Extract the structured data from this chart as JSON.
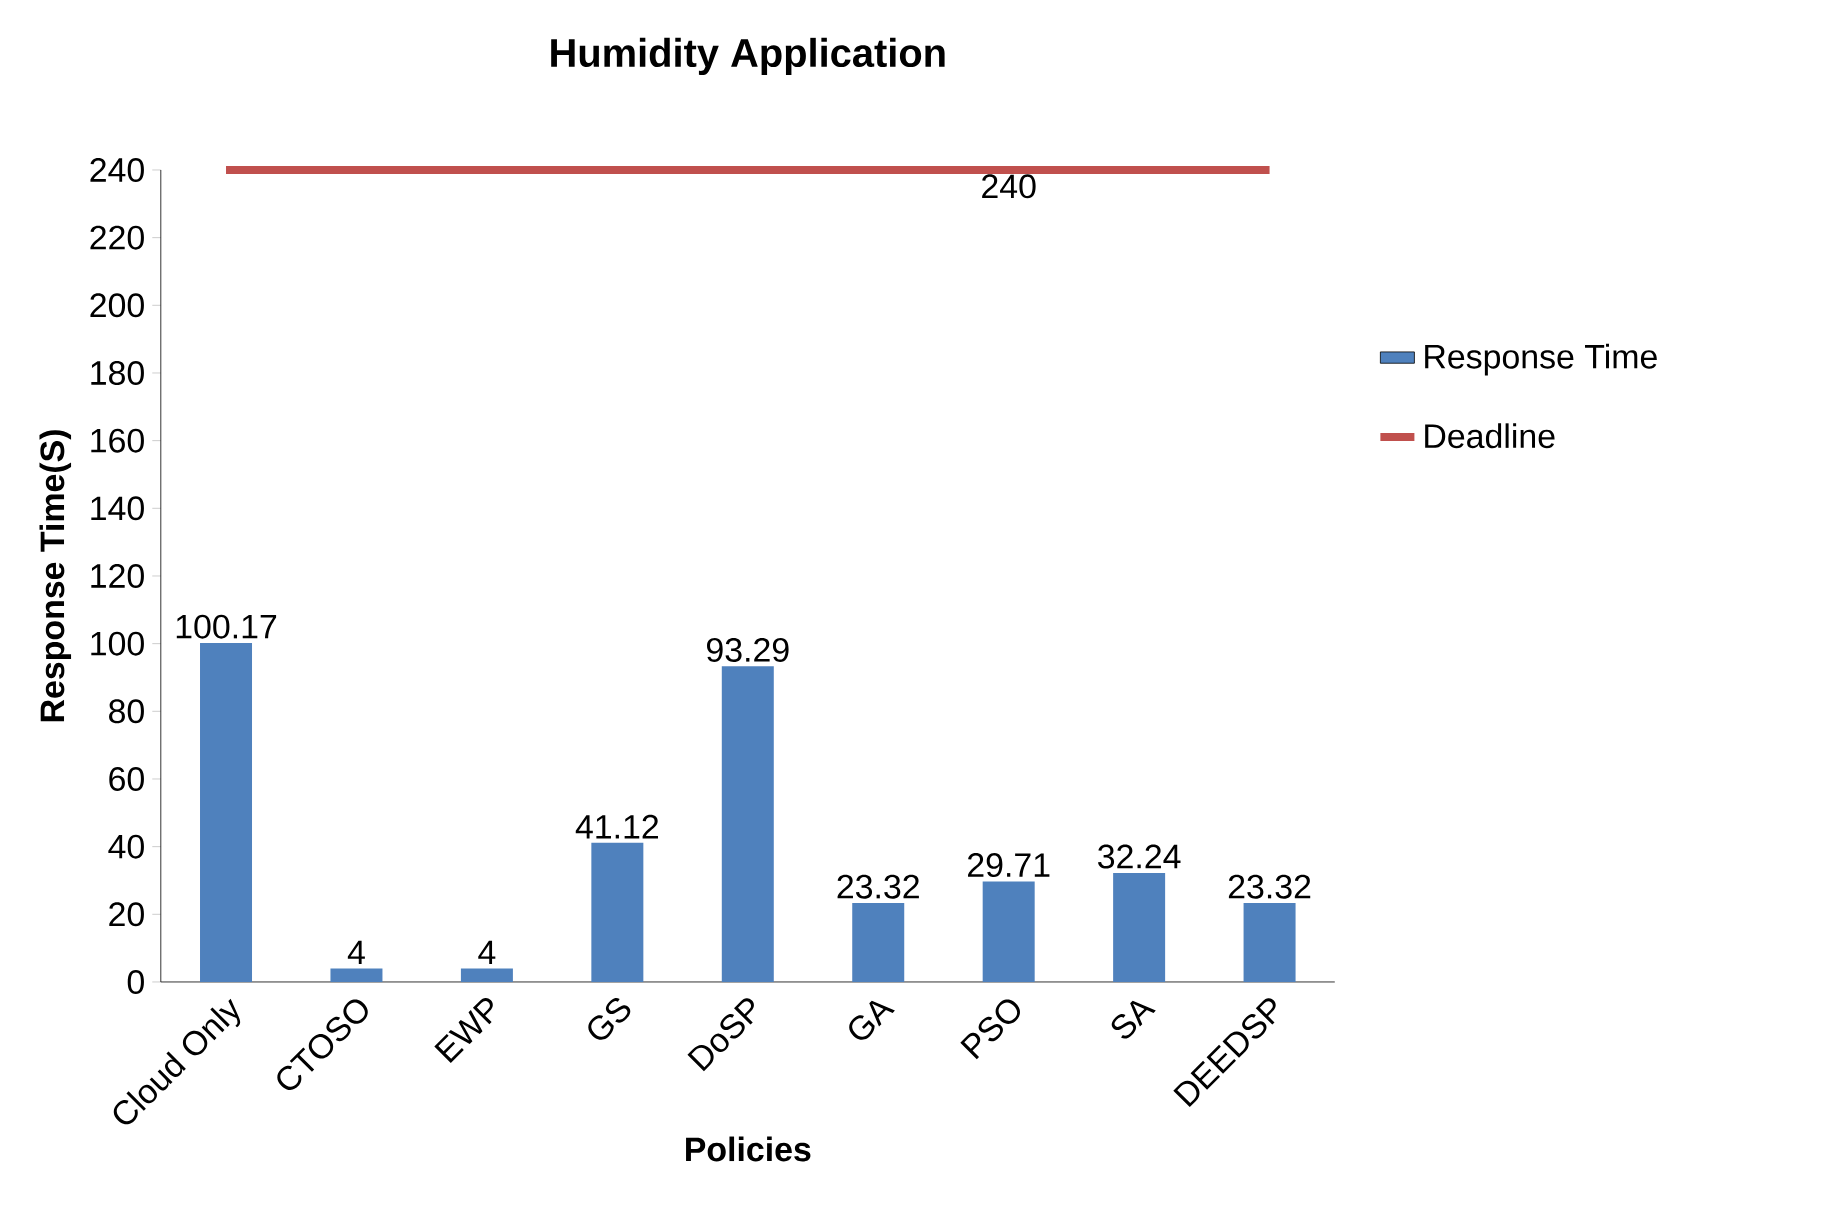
{
  "chart_data": {
    "type": "bar",
    "title": "Humidity Application",
    "xlabel": "Policies",
    "ylabel": "Response Time(S)",
    "categories": [
      "Cloud Only",
      "CTOSO",
      "EWP",
      "GS",
      "DoSP",
      "GA",
      "PSO",
      "SA",
      "DEEDSP"
    ],
    "series": [
      {
        "name": "Response Time",
        "color": "#4f81bd",
        "values": [
          100.17,
          4,
          4,
          41.12,
          93.29,
          23.32,
          29.71,
          32.24,
          23.32
        ],
        "value_labels": [
          "100.17",
          "4",
          "4",
          "41.12",
          "93.29",
          "23.32",
          "29.71",
          "32.24",
          "23.32"
        ]
      },
      {
        "name": "Deadline",
        "type": "line",
        "color": "#c0504d",
        "values": [
          240,
          240,
          240,
          240,
          240,
          240,
          240,
          240,
          240
        ],
        "value_labels": [
          null,
          null,
          null,
          null,
          null,
          null,
          "240",
          null,
          null
        ]
      }
    ],
    "ylim": [
      0,
      240
    ],
    "yticks": [
      0,
      20,
      40,
      60,
      80,
      100,
      120,
      140,
      160,
      180,
      200,
      220,
      240
    ],
    "grid": false,
    "legend": "right"
  }
}
